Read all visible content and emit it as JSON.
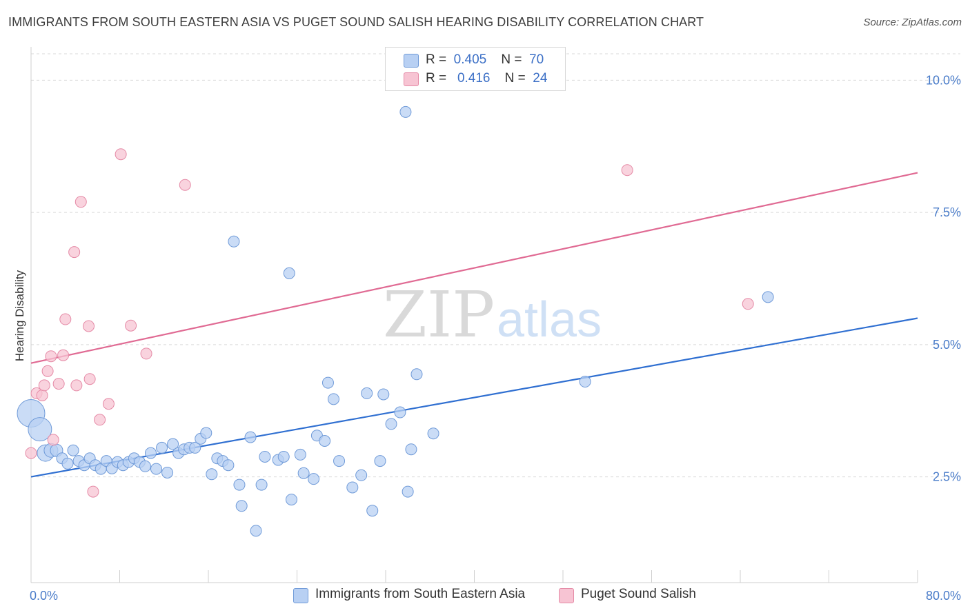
{
  "title": "IMMIGRANTS FROM SOUTH EASTERN ASIA VS PUGET SOUND SALISH HEARING DISABILITY CORRELATION CHART",
  "source": "Source: ZipAtlas.com",
  "watermark": {
    "zip": "ZIP",
    "atlas": "atlas"
  },
  "legend": {
    "rows": [
      {
        "r_label": "R =",
        "r_value": "0.405",
        "n_label": "N =",
        "n_value": "70"
      },
      {
        "r_label": "R =",
        "r_value": "0.416",
        "n_label": "N =",
        "n_value": "24"
      }
    ]
  },
  "bottom_legend": {
    "series1": "Immigrants from South Eastern Asia",
    "series2": "Puget Sound Salish"
  },
  "colors": {
    "blue_fill": "#b8d0f3",
    "blue_stroke": "#6f9ad8",
    "blue_line": "#2f6fd1",
    "pink_fill": "#f7c4d3",
    "pink_stroke": "#e58aa6",
    "pink_line": "#e06a93",
    "tick_label": "#4a7cc9",
    "grid": "#d9d9d9"
  },
  "chart_data": {
    "type": "scatter",
    "title": "IMMIGRANTS FROM SOUTH EASTERN ASIA VS PUGET SOUND SALISH HEARING DISABILITY CORRELATION CHART",
    "xlabel": "",
    "ylabel": "Hearing Disability",
    "xlim": [
      0,
      80
    ],
    "ylim": [
      0.5,
      10.5
    ],
    "x_tick_labels": [
      "0.0%",
      "80.0%"
    ],
    "y_ticks": [
      2.5,
      5.0,
      7.5,
      10.0
    ],
    "y_tick_labels": [
      "2.5%",
      "5.0%",
      "7.5%",
      "10.0%"
    ],
    "grid": "horizontal dashed",
    "legend_position": "top-center",
    "series": [
      {
        "name": "Immigrants from South Eastern Asia",
        "r": 0.405,
        "n": 70,
        "trend": {
          "x": [
            0,
            80
          ],
          "y": [
            2.5,
            5.5
          ]
        },
        "points": [
          {
            "x": 0.0,
            "y": 3.7,
            "s": 20
          },
          {
            "x": 0.8,
            "y": 3.4,
            "s": 17
          },
          {
            "x": 1.3,
            "y": 2.95,
            "s": 12
          },
          {
            "x": 1.8,
            "y": 3.0,
            "s": 10
          },
          {
            "x": 2.3,
            "y": 3.0,
            "s": 9
          },
          {
            "x": 2.8,
            "y": 2.85,
            "s": 8
          },
          {
            "x": 3.3,
            "y": 2.75,
            "s": 8
          },
          {
            "x": 3.8,
            "y": 3.0,
            "s": 8
          },
          {
            "x": 4.3,
            "y": 2.8,
            "s": 8
          },
          {
            "x": 4.8,
            "y": 2.72,
            "s": 8
          },
          {
            "x": 5.3,
            "y": 2.85,
            "s": 8
          },
          {
            "x": 5.8,
            "y": 2.72,
            "s": 8
          },
          {
            "x": 6.3,
            "y": 2.65,
            "s": 8
          },
          {
            "x": 6.8,
            "y": 2.8,
            "s": 8
          },
          {
            "x": 7.3,
            "y": 2.66,
            "s": 8
          },
          {
            "x": 7.8,
            "y": 2.78,
            "s": 8
          },
          {
            "x": 8.3,
            "y": 2.72,
            "s": 8
          },
          {
            "x": 8.8,
            "y": 2.78,
            "s": 8
          },
          {
            "x": 9.3,
            "y": 2.85,
            "s": 8
          },
          {
            "x": 9.8,
            "y": 2.78,
            "s": 8
          },
          {
            "x": 10.3,
            "y": 2.7,
            "s": 8
          },
          {
            "x": 10.8,
            "y": 2.95,
            "s": 8
          },
          {
            "x": 11.3,
            "y": 2.65,
            "s": 8
          },
          {
            "x": 11.8,
            "y": 3.05,
            "s": 8
          },
          {
            "x": 12.3,
            "y": 2.58,
            "s": 8
          },
          {
            "x": 12.8,
            "y": 3.12,
            "s": 8
          },
          {
            "x": 13.3,
            "y": 2.95,
            "s": 8
          },
          {
            "x": 13.8,
            "y": 3.02,
            "s": 8
          },
          {
            "x": 14.3,
            "y": 3.05,
            "s": 8
          },
          {
            "x": 14.8,
            "y": 3.05,
            "s": 8
          },
          {
            "x": 15.3,
            "y": 3.22,
            "s": 8
          },
          {
            "x": 15.8,
            "y": 3.33,
            "s": 8
          },
          {
            "x": 16.3,
            "y": 2.55,
            "s": 8
          },
          {
            "x": 16.8,
            "y": 2.85,
            "s": 8
          },
          {
            "x": 17.3,
            "y": 2.8,
            "s": 8
          },
          {
            "x": 17.8,
            "y": 2.72,
            "s": 8
          },
          {
            "x": 18.3,
            "y": 6.95,
            "s": 8
          },
          {
            "x": 18.8,
            "y": 2.35,
            "s": 8
          },
          {
            "x": 19.0,
            "y": 1.95,
            "s": 8
          },
          {
            "x": 19.8,
            "y": 3.25,
            "s": 8
          },
          {
            "x": 20.3,
            "y": 1.48,
            "s": 8
          },
          {
            "x": 20.8,
            "y": 2.35,
            "s": 8
          },
          {
            "x": 21.1,
            "y": 2.88,
            "s": 8
          },
          {
            "x": 22.3,
            "y": 2.82,
            "s": 8
          },
          {
            "x": 22.8,
            "y": 2.88,
            "s": 8
          },
          {
            "x": 23.3,
            "y": 6.35,
            "s": 8
          },
          {
            "x": 23.5,
            "y": 2.07,
            "s": 8
          },
          {
            "x": 24.3,
            "y": 2.92,
            "s": 8
          },
          {
            "x": 24.6,
            "y": 2.57,
            "s": 8
          },
          {
            "x": 25.5,
            "y": 2.46,
            "s": 8
          },
          {
            "x": 25.8,
            "y": 3.28,
            "s": 8
          },
          {
            "x": 26.5,
            "y": 3.18,
            "s": 8
          },
          {
            "x": 26.8,
            "y": 4.28,
            "s": 8
          },
          {
            "x": 27.3,
            "y": 3.97,
            "s": 8
          },
          {
            "x": 27.8,
            "y": 2.8,
            "s": 8
          },
          {
            "x": 29.0,
            "y": 2.3,
            "s": 8
          },
          {
            "x": 29.8,
            "y": 2.53,
            "s": 8
          },
          {
            "x": 30.3,
            "y": 4.08,
            "s": 8
          },
          {
            "x": 30.8,
            "y": 1.86,
            "s": 8
          },
          {
            "x": 31.5,
            "y": 2.8,
            "s": 8
          },
          {
            "x": 31.8,
            "y": 4.06,
            "s": 8
          },
          {
            "x": 32.5,
            "y": 3.5,
            "s": 8
          },
          {
            "x": 33.3,
            "y": 3.72,
            "s": 8
          },
          {
            "x": 33.8,
            "y": 9.4,
            "s": 8
          },
          {
            "x": 34.0,
            "y": 2.22,
            "s": 8
          },
          {
            "x": 34.3,
            "y": 3.02,
            "s": 8
          },
          {
            "x": 34.8,
            "y": 4.44,
            "s": 8
          },
          {
            "x": 36.3,
            "y": 3.32,
            "s": 8
          },
          {
            "x": 50.0,
            "y": 4.3,
            "s": 8
          },
          {
            "x": 66.5,
            "y": 5.9,
            "s": 8
          }
        ]
      },
      {
        "name": "Puget Sound Salish",
        "r": 0.416,
        "n": 24,
        "trend": {
          "x": [
            0,
            80
          ],
          "y": [
            4.65,
            8.25
          ]
        },
        "points": [
          {
            "x": 0.0,
            "y": 2.95,
            "s": 8
          },
          {
            "x": 0.5,
            "y": 4.08,
            "s": 8
          },
          {
            "x": 1.0,
            "y": 4.04,
            "s": 8
          },
          {
            "x": 1.2,
            "y": 4.23,
            "s": 8
          },
          {
            "x": 1.5,
            "y": 4.5,
            "s": 8
          },
          {
            "x": 1.8,
            "y": 4.78,
            "s": 8
          },
          {
            "x": 2.0,
            "y": 3.2,
            "s": 8
          },
          {
            "x": 2.5,
            "y": 4.26,
            "s": 8
          },
          {
            "x": 2.9,
            "y": 4.8,
            "s": 8
          },
          {
            "x": 3.1,
            "y": 5.48,
            "s": 8
          },
          {
            "x": 3.9,
            "y": 6.75,
            "s": 8
          },
          {
            "x": 4.1,
            "y": 4.23,
            "s": 8
          },
          {
            "x": 4.5,
            "y": 7.7,
            "s": 8
          },
          {
            "x": 5.2,
            "y": 5.35,
            "s": 8
          },
          {
            "x": 5.3,
            "y": 4.35,
            "s": 8
          },
          {
            "x": 5.6,
            "y": 2.22,
            "s": 8
          },
          {
            "x": 6.2,
            "y": 3.58,
            "s": 8
          },
          {
            "x": 7.0,
            "y": 3.88,
            "s": 8
          },
          {
            "x": 8.1,
            "y": 8.6,
            "s": 8
          },
          {
            "x": 9.0,
            "y": 5.36,
            "s": 8
          },
          {
            "x": 10.4,
            "y": 4.83,
            "s": 8
          },
          {
            "x": 13.9,
            "y": 8.02,
            "s": 8
          },
          {
            "x": 53.8,
            "y": 8.3,
            "s": 8
          },
          {
            "x": 64.7,
            "y": 5.77,
            "s": 8
          }
        ]
      }
    ]
  }
}
